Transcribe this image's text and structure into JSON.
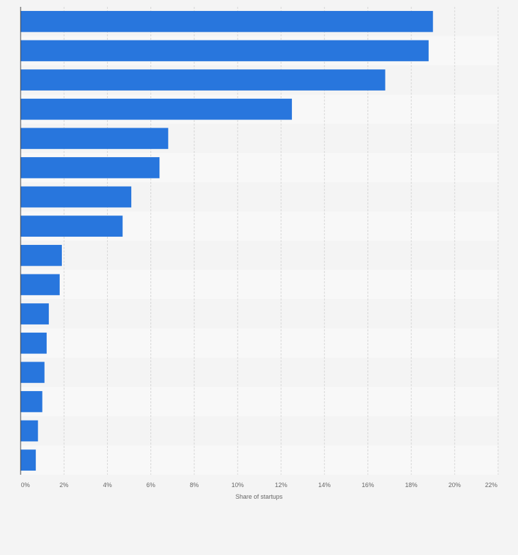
{
  "chart_data": {
    "type": "bar",
    "orientation": "horizontal",
    "title": "",
    "xlabel": "Share of startups",
    "ylabel": "",
    "xlim": [
      0,
      22
    ],
    "xticks": [
      0,
      2,
      4,
      6,
      8,
      10,
      12,
      14,
      16,
      18,
      20,
      22
    ],
    "xtick_labels": [
      "0%",
      "2%",
      "4%",
      "6%",
      "8%",
      "10%",
      "12%",
      "14%",
      "16%",
      "18%",
      "20%",
      "22%"
    ],
    "categories": [
      "",
      "",
      "",
      "",
      "",
      "",
      "",
      "",
      "",
      "",
      "",
      "",
      "",
      "",
      "",
      ""
    ],
    "values": [
      19.0,
      18.8,
      16.8,
      12.5,
      6.8,
      6.4,
      5.1,
      4.7,
      1.9,
      1.8,
      1.3,
      1.2,
      1.1,
      1.0,
      0.8,
      0.7
    ],
    "bar_color": "#2876dd",
    "band_colors": [
      "#f4f4f4",
      "#f8f8f8"
    ],
    "grid": true
  }
}
